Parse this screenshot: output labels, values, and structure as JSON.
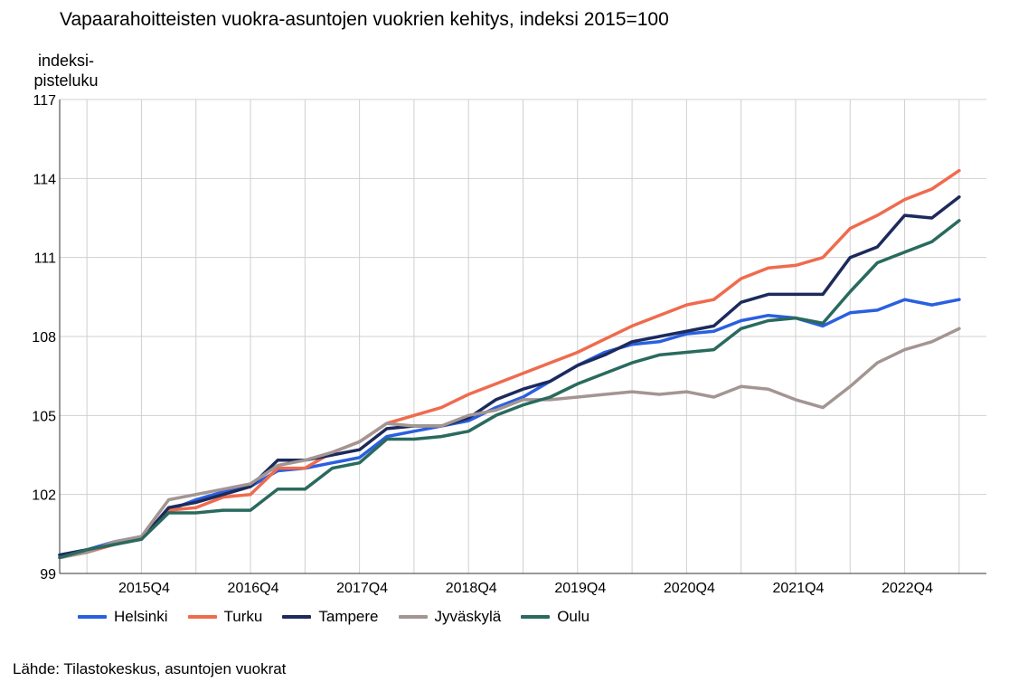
{
  "chart_data": {
    "type": "line",
    "title": "Vapaarahoitteisten vuokra-asuntojen vuokrien kehitys, indeksi 2015=100",
    "ylabel": "indeksi-pisteluku",
    "ylabel_lines": [
      "indeksi-",
      "pisteluku"
    ],
    "xlabel": "",
    "ylim": [
      99,
      117
    ],
    "yticks": [
      99,
      102,
      105,
      108,
      111,
      114,
      117
    ],
    "x": [
      "2015Q1",
      "2015Q2",
      "2015Q3",
      "2015Q4",
      "2016Q1",
      "2016Q2",
      "2016Q3",
      "2016Q4",
      "2017Q1",
      "2017Q2",
      "2017Q3",
      "2017Q4",
      "2018Q1",
      "2018Q2",
      "2018Q3",
      "2018Q4",
      "2019Q1",
      "2019Q2",
      "2019Q3",
      "2019Q4",
      "2020Q1",
      "2020Q2",
      "2020Q3",
      "2020Q4",
      "2021Q1",
      "2021Q2",
      "2021Q3",
      "2021Q4",
      "2022Q1",
      "2022Q2",
      "2022Q3",
      "2022Q4",
      "2023Q1",
      "2023Q2",
      "2023Q3"
    ],
    "xtick_labels": [
      "2015Q4",
      "2016Q4",
      "2017Q4",
      "2018Q4",
      "2019Q4",
      "2020Q4",
      "2021Q4",
      "2022Q4"
    ],
    "grid": true,
    "legend_position": "bottom",
    "series": [
      {
        "name": "Helsinki",
        "color": "#2a5fe0",
        "values": [
          99.7,
          99.9,
          100.2,
          100.4,
          101.4,
          101.8,
          102.1,
          102.3,
          102.9,
          103.0,
          103.2,
          103.4,
          104.2,
          104.4,
          104.6,
          104.8,
          105.3,
          105.7,
          106.3,
          106.9,
          107.4,
          107.7,
          107.8,
          108.1,
          108.2,
          108.6,
          108.8,
          108.7,
          108.4,
          108.9,
          109.0,
          109.4,
          109.2,
          109.4,
          null
        ]
      },
      {
        "name": "Turku",
        "color": "#ef6b4e",
        "values": [
          99.6,
          99.8,
          100.1,
          100.4,
          101.4,
          101.5,
          101.9,
          102.0,
          103.0,
          103.0,
          103.6,
          104.0,
          104.7,
          105.0,
          105.3,
          105.8,
          106.2,
          106.6,
          107.0,
          107.4,
          107.9,
          108.4,
          108.8,
          109.2,
          109.4,
          110.2,
          110.6,
          110.7,
          111.0,
          112.1,
          112.6,
          113.2,
          113.6,
          114.3,
          null
        ]
      },
      {
        "name": "Tampere",
        "color": "#1c2a5c",
        "values": [
          99.7,
          99.9,
          100.1,
          100.3,
          101.5,
          101.7,
          102.0,
          102.3,
          103.3,
          103.3,
          103.5,
          103.7,
          104.5,
          104.6,
          104.6,
          104.9,
          105.6,
          106.0,
          106.3,
          106.9,
          107.3,
          107.8,
          108.0,
          108.2,
          108.4,
          109.3,
          109.6,
          109.6,
          109.6,
          111.0,
          111.4,
          112.6,
          112.5,
          113.3,
          null
        ]
      },
      {
        "name": "Jyväskylä",
        "color": "#a39592",
        "values": [
          99.6,
          99.8,
          100.2,
          100.4,
          101.8,
          102.0,
          102.2,
          102.4,
          103.1,
          103.3,
          103.6,
          104.0,
          104.7,
          104.6,
          104.6,
          105.0,
          105.2,
          105.6,
          105.6,
          105.7,
          105.8,
          105.9,
          105.8,
          105.9,
          105.7,
          106.1,
          106.0,
          105.6,
          105.3,
          106.1,
          107.0,
          107.5,
          107.8,
          108.3,
          null
        ]
      },
      {
        "name": "Oulu",
        "color": "#2a6a5e",
        "values": [
          99.6,
          99.9,
          100.1,
          100.3,
          101.3,
          101.3,
          101.4,
          101.4,
          102.2,
          102.2,
          103.0,
          103.2,
          104.1,
          104.1,
          104.2,
          104.4,
          105.0,
          105.4,
          105.7,
          106.2,
          106.6,
          107.0,
          107.3,
          107.4,
          107.5,
          108.3,
          108.6,
          108.7,
          108.5,
          109.7,
          110.8,
          111.2,
          111.6,
          112.4,
          null
        ]
      }
    ]
  },
  "source": "Lähde: Tilastokeskus, asuntojen vuokrat"
}
